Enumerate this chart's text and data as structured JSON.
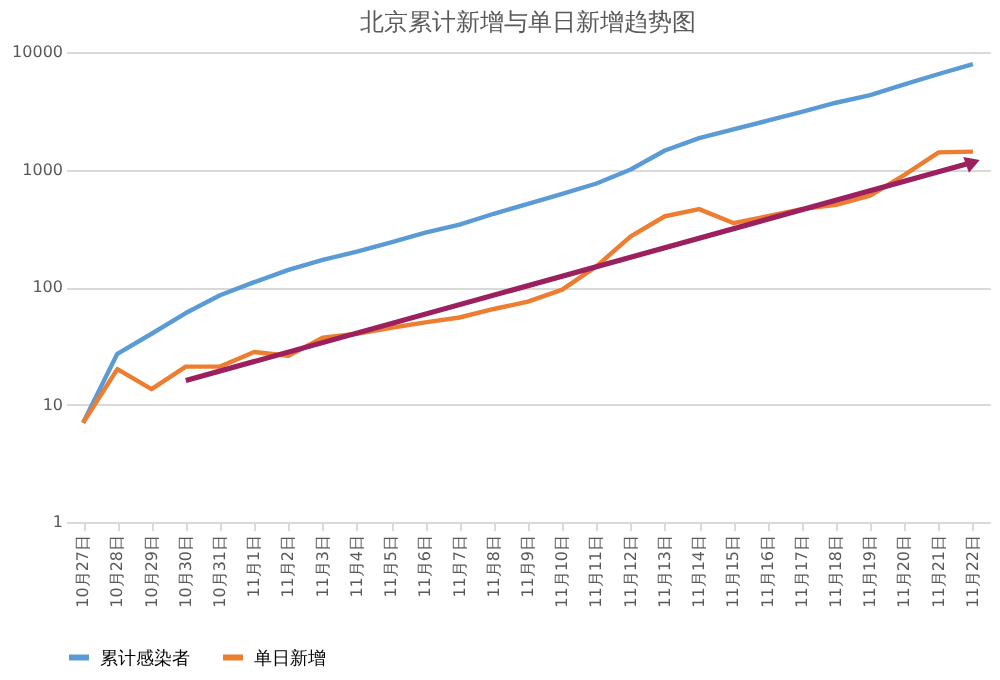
{
  "chart_data": {
    "type": "line",
    "title": "北京累计新增与单日新增趋势图",
    "categories": [
      "10月27日",
      "10月28日",
      "10月29日",
      "10月30日",
      "10月31日",
      "11月1日",
      "11月2日",
      "11月3日",
      "11月4日",
      "11月5日",
      "11月6日",
      "11月7日",
      "11月8日",
      "11月9日",
      "11月10日",
      "11月11日",
      "11月12日",
      "11月13日",
      "11月14日",
      "11月15日",
      "11月16日",
      "11月17日",
      "11月18日",
      "11月19日",
      "11月20日",
      "11月21日",
      "11月22日"
    ],
    "series": [
      {
        "name": "累计感染者",
        "color": "#5b9bd5",
        "values": [
          7,
          27,
          40,
          60,
          85,
          110,
          140,
          170,
          200,
          240,
          290,
          340,
          420,
          510,
          620,
          760,
          1000,
          1450,
          1850,
          2200,
          2600,
          3100,
          3700,
          4300,
          5300,
          6500,
          7900
        ]
      },
      {
        "name": "单日新增",
        "color": "#ed7d31",
        "values": [
          7,
          20,
          13.5,
          21,
          21,
          28,
          26,
          37,
          40,
          45,
          50,
          55,
          65,
          75,
          95,
          150,
          270,
          400,
          460,
          350,
          400,
          460,
          500,
          600,
          900,
          1400,
          1420
        ]
      },
      {
        "type": "line",
        "color": "#9c1f5e",
        "x": [
          "10月30日",
          "11月22日"
        ],
        "values": [
          16,
          1150
        ]
      }
    ],
    "log": true,
    "ylim": [
      1,
      10000
    ],
    "yticks": [
      1,
      10,
      100,
      1000,
      10000
    ],
    "grid": "y",
    "legend": "bottom"
  }
}
